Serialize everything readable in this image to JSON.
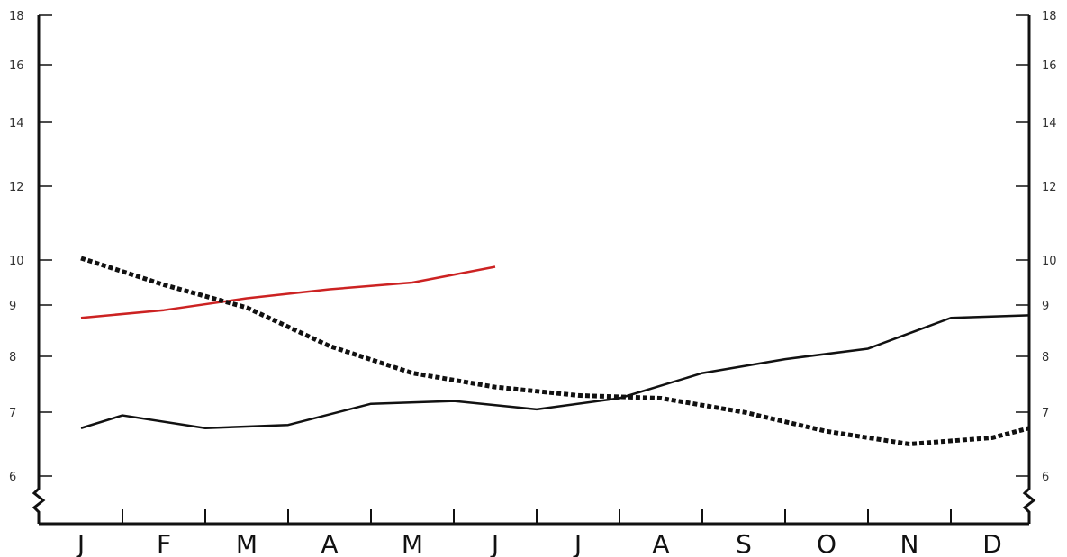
{
  "chart_data": {
    "type": "line",
    "title": "",
    "xlabel": "",
    "ylabel": "",
    "categories": [
      "J",
      "F",
      "M",
      "A",
      "M",
      "J",
      "J",
      "A",
      "S",
      "O",
      "N",
      "D"
    ],
    "y_ticks": [
      6,
      7,
      8,
      9,
      10,
      12,
      14,
      16,
      18
    ],
    "ylim": [
      6,
      18
    ],
    "y_axis_break": true,
    "grid": false,
    "legend": "none",
    "series": [
      {
        "color": "#cc2222",
        "style": "solid",
        "x": [
          0,
          1,
          2,
          3,
          4,
          5
        ],
        "values": [
          8.75,
          8.9,
          9.15,
          9.35,
          9.5,
          9.85
        ]
      },
      {
        "color": "#111111",
        "style": "dotted",
        "x": [
          0,
          1,
          2,
          3,
          4,
          5,
          6,
          7,
          8,
          9,
          10,
          11,
          11.5
        ],
        "values": [
          10.05,
          9.45,
          8.95,
          8.2,
          7.7,
          7.45,
          7.3,
          7.25,
          7.0,
          6.7,
          6.5,
          6.6,
          6.75
        ]
      },
      {
        "color": "#111111",
        "style": "solid",
        "x": [
          0,
          0.5,
          1.5,
          2.5,
          3.5,
          4.5,
          5.5,
          6.5,
          7.5,
          8.5,
          9.5,
          10.5,
          11.5
        ],
        "values": [
          6.75,
          6.95,
          6.75,
          6.8,
          7.15,
          7.2,
          7.05,
          7.25,
          7.7,
          7.95,
          8.15,
          8.75,
          8.8
        ]
      }
    ]
  }
}
